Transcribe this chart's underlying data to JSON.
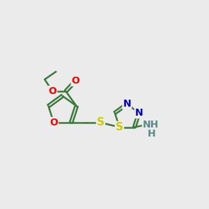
{
  "background_color": "#ebebeb",
  "bond_color": "#3a7a3a",
  "bond_width": 1.8,
  "atom_colors": {
    "O": "#ff0000",
    "N": "#0000cc",
    "S": "#cccc00",
    "C": "#3a7a3a",
    "H": "#5a8a8a",
    "NH": "#5a8a8a"
  },
  "font_size": 10,
  "label_fontsize": 10
}
